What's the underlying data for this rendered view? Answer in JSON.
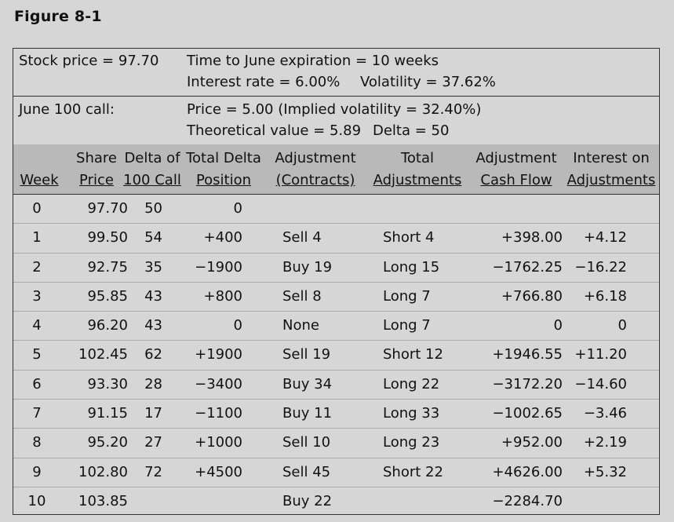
{
  "figure_title": "Figure 8-1",
  "info": {
    "stock_price": "Stock price = 97.70",
    "time_to_expiration": "Time to June expiration = 10 weeks",
    "interest_rate": "Interest rate = 6.00%",
    "volatility": "Volatility = 37.62%",
    "option": "June 100 call:",
    "price": "Price = 5.00  (Implied volatility = 32.40%)",
    "theoretical_value": "Theoretical value = 5.89",
    "delta": "Delta = 50"
  },
  "headers": [
    {
      "line1": "",
      "line2": "Week"
    },
    {
      "line1": "Share",
      "line2": "Price"
    },
    {
      "line1": "Delta of",
      "line2": "100 Call"
    },
    {
      "line1": "Total Delta",
      "line2": "Position"
    },
    {
      "line1": "Adjustment",
      "line2": "(Contracts)"
    },
    {
      "line1": "Total",
      "line2": "Adjustments"
    },
    {
      "line1": "Adjustment",
      "line2": "Cash Flow"
    },
    {
      "line1": "Interest on",
      "line2": "Adjustments"
    }
  ],
  "rows": [
    {
      "week": "0",
      "price": "97.70",
      "delta": "50",
      "total": "0",
      "adj": "",
      "tadj": "",
      "cash": "",
      "interest": ""
    },
    {
      "week": "1",
      "price": "99.50",
      "delta": "54",
      "total": "+400",
      "adj": "Sell 4",
      "tadj": "Short 4",
      "cash": "+398.00",
      "interest": "+4.12"
    },
    {
      "week": "2",
      "price": "92.75",
      "delta": "35",
      "total": "−1900",
      "adj": "Buy 19",
      "tadj": "Long 15",
      "cash": "−1762.25",
      "interest": "−16.22"
    },
    {
      "week": "3",
      "price": "95.85",
      "delta": "43",
      "total": "+800",
      "adj": "Sell 8",
      "tadj": "Long 7",
      "cash": "+766.80",
      "interest": "+6.18"
    },
    {
      "week": "4",
      "price": "96.20",
      "delta": "43",
      "total": "0",
      "adj": "None",
      "tadj": "Long 7",
      "cash": "0",
      "interest": "0"
    },
    {
      "week": "5",
      "price": "102.45",
      "delta": "62",
      "total": "+1900",
      "adj": "Sell 19",
      "tadj": "Short 12",
      "cash": "+1946.55",
      "interest": "+11.20"
    },
    {
      "week": "6",
      "price": "93.30",
      "delta": "28",
      "total": "−3400",
      "adj": "Buy 34",
      "tadj": "Long 22",
      "cash": "−3172.20",
      "interest": "−14.60"
    },
    {
      "week": "7",
      "price": "91.15",
      "delta": "17",
      "total": "−1100",
      "adj": "Buy 11",
      "tadj": "Long 33",
      "cash": "−1002.65",
      "interest": "−3.46"
    },
    {
      "week": "8",
      "price": "95.20",
      "delta": "27",
      "total": "+1000",
      "adj": "Sell 10",
      "tadj": "Long 23",
      "cash": "+952.00",
      "interest": "+2.19"
    },
    {
      "week": "9",
      "price": "102.80",
      "delta": "72",
      "total": "+4500",
      "adj": "Sell 45",
      "tadj": "Short 22",
      "cash": "+4626.00",
      "interest": "+5.32"
    },
    {
      "week": "10",
      "price": "103.85",
      "delta": "",
      "total": "",
      "adj": "Buy 22",
      "tadj": "",
      "cash": "−2284.70",
      "interest": ""
    }
  ]
}
